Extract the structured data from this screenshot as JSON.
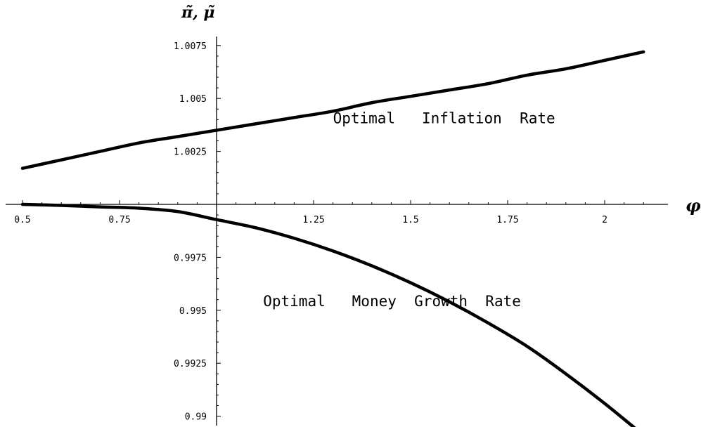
{
  "chart_data": {
    "type": "line",
    "xlabel": "φ",
    "ylabel": "π̃, μ̃",
    "xlim": [
      0.5,
      2.1
    ],
    "ylim": [
      0.99,
      1.0075
    ],
    "axis_cross": {
      "x": 1.0,
      "y": 1.0
    },
    "x_ticks": [
      {
        "value": 0.5,
        "label": "0.5"
      },
      {
        "value": 0.75,
        "label": "0.75"
      },
      {
        "value": 1.25,
        "label": "1.25"
      },
      {
        "value": 1.5,
        "label": "1.5"
      },
      {
        "value": 1.75,
        "label": "1.75"
      },
      {
        "value": 2.0,
        "label": "2"
      }
    ],
    "y_ticks": [
      {
        "value": 0.99,
        "label": "0.99"
      },
      {
        "value": 0.9925,
        "label": "0.9925"
      },
      {
        "value": 0.995,
        "label": "0.995"
      },
      {
        "value": 0.9975,
        "label": "0.9975"
      },
      {
        "value": 1.0025,
        "label": "1.0025"
      },
      {
        "value": 1.005,
        "label": "1.005"
      },
      {
        "value": 1.0075,
        "label": "1.0075"
      }
    ],
    "grid": false,
    "series": [
      {
        "x": [
          0.5,
          0.6,
          0.7,
          0.8,
          0.9,
          1.0,
          1.1,
          1.2,
          1.3,
          1.4,
          1.5,
          1.6,
          1.7,
          1.8,
          1.9,
          2.0,
          2.1
        ],
        "y": [
          1.0017,
          1.0021,
          1.0025,
          1.0029,
          1.0032,
          1.0035,
          1.0038,
          1.0041,
          1.0044,
          1.0048,
          1.0051,
          1.0054,
          1.0057,
          1.0061,
          1.0064,
          1.0068,
          1.0072
        ]
      },
      {
        "x": [
          0.5,
          0.6,
          0.7,
          0.8,
          0.9,
          1.0,
          1.1,
          1.2,
          1.3,
          1.4,
          1.5,
          1.6,
          1.7,
          1.8,
          1.9,
          2.0,
          2.1
        ],
        "y": [
          1.0,
          0.99995,
          0.99988,
          0.99982,
          0.99966,
          0.99928,
          0.9989,
          0.9984,
          0.9978,
          0.9971,
          0.9963,
          0.9954,
          0.9944,
          0.9933,
          0.992,
          0.9906,
          0.9891
        ]
      }
    ],
    "annotations": [
      {
        "text": "Optimal   Inflation  Rate",
        "x": 1.3,
        "y": 1.0041
      },
      {
        "text": "Optimal   Money  Growth  Rate",
        "x": 1.12,
        "y": 0.99545
      }
    ]
  }
}
